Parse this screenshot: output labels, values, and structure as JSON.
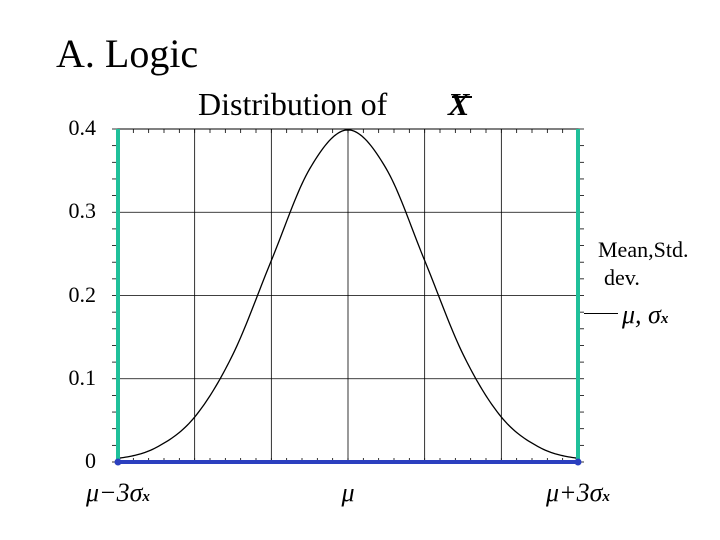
{
  "slide_title": "A. Logic",
  "chart_data": {
    "type": "line",
    "title": "Distribution of",
    "title_symbol": "X",
    "ylim": [
      0,
      0.4
    ],
    "y_ticks": [
      "0",
      "0.1",
      "0.2",
      "0.3",
      "0.4"
    ],
    "xlim": [
      -3,
      3
    ],
    "x_tick_labels": [
      {
        "x": -3,
        "main": "μ−3σ",
        "sub": "x"
      },
      {
        "x": 0,
        "main": "μ",
        "sub": ""
      },
      {
        "x": 3,
        "main": "μ+3σ",
        "sub": "x"
      }
    ],
    "grid": true,
    "series": [
      {
        "kind": "curve",
        "color": "#000000",
        "x": [
          -3,
          -2.5,
          -2,
          -1.5,
          -1,
          -0.5,
          0,
          0.5,
          1,
          1.5,
          2,
          2.5,
          3
        ],
        "y": [
          0.0044,
          0.0175,
          0.054,
          0.1295,
          0.242,
          0.3521,
          0.3989,
          0.3521,
          0.242,
          0.1295,
          0.054,
          0.0175,
          0.0044
        ]
      },
      {
        "kind": "vline",
        "x": -3,
        "color": "#1fc09a"
      },
      {
        "kind": "vline",
        "x": 3,
        "color": "#1fc09a"
      },
      {
        "kind": "hline",
        "y": 0,
        "x_from": -3,
        "x_to": 3,
        "color": "#2b3fbf"
      }
    ],
    "annotation": {
      "line1": "Mean,Std.",
      "line2": "dev.",
      "symbol": "μ, σ",
      "sub": "x"
    }
  },
  "colors": {
    "green": "#1fc09a",
    "blue": "#2b3fbf",
    "grid": "#000000"
  }
}
